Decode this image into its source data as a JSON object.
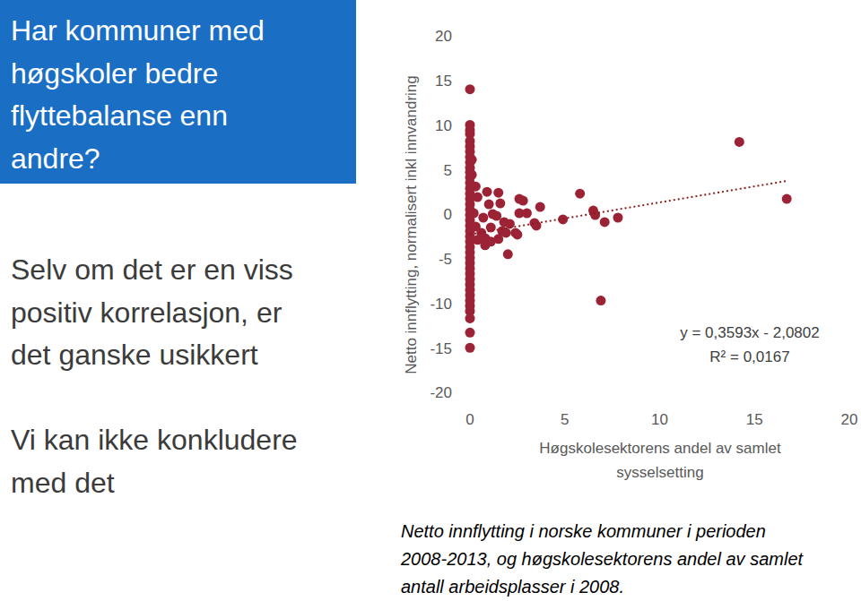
{
  "slide": {
    "title_lines": [
      "Har kommuner med",
      "høgskoler bedre",
      "flyttebalanse enn",
      "andre?"
    ],
    "text_blocks": [
      [
        "Selv om det er en viss",
        "positiv korrelasjon, er",
        "det ganske usikkert"
      ],
      [
        "Vi kan ikke konkludere",
        "med det"
      ]
    ],
    "caption_lines": [
      "Netto innflytting i norske kommuner i perioden",
      "2008-2013, og høgskolesektorens andel av samlet",
      "antall arbeidsplasser i 2008."
    ]
  },
  "chart_data": {
    "type": "scatter",
    "x_label": "Høgskolesektorens andel av samlet sysselsetting",
    "y_label": "Netto innflytting, normalisert inkl innvandring",
    "color": "#9b2335",
    "marker": "circle",
    "grid": false,
    "xlim": [
      0,
      20
    ],
    "ylim": [
      -20,
      20
    ],
    "xticks": [
      0,
      5,
      10,
      15,
      20
    ],
    "yticks": [
      -20,
      -15,
      -10,
      -5,
      0,
      5,
      10,
      15,
      20
    ],
    "x": [
      0,
      0,
      0,
      0,
      0,
      0,
      0,
      0,
      0,
      0,
      0,
      0,
      0,
      0,
      0,
      0,
      0,
      0,
      0,
      0,
      0,
      0,
      0,
      0,
      0,
      0,
      0,
      0,
      0,
      0,
      0,
      0,
      0,
      0,
      0,
      0,
      0,
      0,
      0,
      0,
      0.1,
      0.3,
      0.4,
      0.9,
      1.5,
      1.0,
      0.7,
      1.2,
      0.6,
      0.8,
      1.1,
      0.8,
      1.5,
      1.7,
      1.8,
      2.1,
      1.9,
      2.0,
      2.4,
      2.5,
      2.6,
      2.8,
      2.6,
      3.0,
      3.5,
      3.4,
      3.7,
      1.6,
      1.4,
      1.1,
      0.2,
      0.3,
      0.4,
      0.1,
      4.9,
      5.8,
      6.5,
      6.6,
      7.1,
      7.8,
      6.9,
      14.2,
      16.7
    ],
    "values": [
      14.2,
      10.2,
      9.6,
      9.2,
      8.4,
      7.8,
      7.2,
      6.6,
      6.0,
      5.4,
      4.9,
      4.3,
      3.7,
      3.1,
      2.5,
      1.9,
      1.3,
      0.7,
      0.1,
      -0.5,
      -1.1,
      -1.7,
      -2.3,
      -2.9,
      -3.5,
      -4.1,
      -4.7,
      -5.3,
      -5.9,
      -6.5,
      -7.1,
      -7.7,
      -8.3,
      -8.9,
      -9.5,
      -10.1,
      -10.7,
      -11.5,
      -13.1,
      -14.8,
      4.6,
      3.3,
      2.1,
      2.7,
      2.6,
      1.3,
      -0.2,
      0.2,
      -1.9,
      -2.5,
      -2.9,
      -3.3,
      -2.6,
      -1.7,
      -0.7,
      -0.9,
      -1.9,
      -4.3,
      -1.9,
      -2.1,
      1.9,
      1.7,
      0.3,
      0.3,
      -1.1,
      -0.8,
      1.0,
      1.4,
      0.0,
      -1.3,
      0.3,
      -1.2,
      -2.7,
      6.3,
      -0.4,
      2.5,
      0.6,
      0.1,
      -0.7,
      -0.2,
      -9.5,
      8.3,
      1.9
    ],
    "trendline": {
      "slope": 0.3593,
      "intercept": -2.0802,
      "line_style": "dotted",
      "color": "#8b1c1c"
    },
    "annotations": [
      "y = 0,3593x - 2,0802",
      "R² = 0,0167"
    ]
  }
}
